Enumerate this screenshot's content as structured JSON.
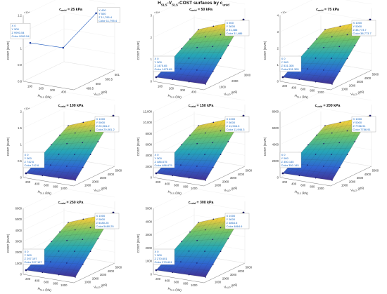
{
  "figure": {
    "title": "H_SLS - V_SLS - COST surfaces by c_unid",
    "title_parts": {
      "h": "H",
      "h_sub": "SLS",
      "sep1": "-",
      "v": "V",
      "v_sub": "SLS",
      "rest": "-COST surfaces by c",
      "c_sub": "unid"
    }
  },
  "colors": {
    "surface_low": "#3b0f70",
    "surface_mid1": "#2c7fb8",
    "surface_mid2": "#21a685",
    "surface_high": "#f9e721",
    "datatip_text": "#1565c0",
    "axis": "#555555"
  },
  "chart_data": [
    {
      "type": "line",
      "title": "c_unid = 25 kPa",
      "xlabel": "H_SLS (kN)",
      "ylabel": "V_SLS (kN)",
      "zlabel": "COST (EUR)",
      "exponent": "×10⁴",
      "x_ticks": [
        "100",
        "200",
        "300",
        "400"
      ],
      "y_ticks": [
        "499.5",
        "500",
        "500.5",
        "501"
      ],
      "z_ticks": [
        "0.8",
        "0.9",
        "1",
        "1.1",
        "1.2"
      ],
      "zlim": [
        0.8,
        1.2
      ],
      "points": [
        {
          "x": 0,
          "y": 500,
          "z": 0.9994
        },
        {
          "x": 200,
          "y": 500,
          "z": 0.97
        },
        {
          "x": 400,
          "y": 500,
          "z": 1.17954
        }
      ],
      "datatips": [
        {
          "lines": [
            "X 0",
            "Y 500",
            "Z 9993.54",
            "Color 9993.54"
          ]
        },
        {
          "lines": [
            "X 400",
            "Y 500",
            "Z 11,795.4",
            "Color 11,795.4"
          ]
        }
      ]
    },
    {
      "type": "surface",
      "title": "c_unid = 50 kPa",
      "xlabel": "H_SLS (kN)",
      "ylabel": "V_SLS (kN)",
      "zlabel": "COST (EUR)",
      "exponent": "×10⁴",
      "x_ticks": [
        "100",
        "200",
        "300",
        "400"
      ],
      "y_ticks": [
        "1000",
        "2000",
        "3000"
      ],
      "z_ticks": [
        "0",
        "1",
        "2",
        "3"
      ],
      "zlim": [
        0,
        3.5
      ],
      "datatips": [
        {
          "lines": [
            "X 0",
            "Y 500",
            "Z 1475.65",
            "Color 1475.65"
          ]
        },
        {
          "lines": [
            "X 500",
            "Y 3000",
            "Z 31,486",
            "Color 31,486"
          ]
        }
      ]
    },
    {
      "type": "surface",
      "title": "c_unid = 75 kPa",
      "xlabel": "H_SLS (kN)",
      "ylabel": "V_SLS (kN)",
      "zlabel": "COST (EUR)",
      "exponent": "×10⁴",
      "x_ticks": [
        "200",
        "400",
        "600",
        "800",
        "1000"
      ],
      "y_ticks": [
        "1000",
        "2000",
        "3000",
        "4000",
        "5000"
      ],
      "z_ticks": [
        "0",
        "1",
        "2",
        "3",
        "4"
      ],
      "zlim": [
        0,
        4
      ],
      "datatips": [
        {
          "lines": [
            "X 0",
            "Y 500",
            "Z 531.305",
            "Color 531.305"
          ]
        },
        {
          "lines": [
            "X 1000",
            "Y 5000",
            "Z 38,773.7",
            "Color 38,773.7"
          ]
        }
      ]
    },
    {
      "type": "surface",
      "title": "c_unid = 100 kPa",
      "xlabel": "H_SLS (kN)",
      "ylabel": "V_SLS (kN)",
      "zlabel": "COST (EUR)",
      "exponent": "×10⁴",
      "x_ticks": [
        "200",
        "400",
        "600",
        "800",
        "1000"
      ],
      "y_ticks": [
        "1000",
        "2000",
        "3000",
        "4000",
        "5000"
      ],
      "z_ticks": [
        "0",
        "0.5",
        "1",
        "1.5",
        "2"
      ],
      "zlim": [
        0,
        2
      ],
      "datatips": [
        {
          "lines": [
            "X 0",
            "Y 500",
            "Z 742.6",
            "Color 742.6"
          ]
        },
        {
          "lines": [
            "X 1000",
            "Y 5000",
            "Z 20,061.2",
            "Color 20,061.2"
          ]
        }
      ]
    },
    {
      "type": "surface",
      "title": "c_unid = 150 kPa",
      "xlabel": "H_SLS (kN)",
      "ylabel": "V_SLS (kN)",
      "zlabel": "COST (EUR)",
      "exponent": "",
      "x_ticks": [
        "200",
        "400",
        "600",
        "800",
        "1000"
      ],
      "y_ticks": [
        "1000",
        "2000",
        "3000",
        "4000",
        "5000"
      ],
      "z_ticks": [
        "0",
        "2000",
        "4000",
        "6000",
        "8000",
        "10,000",
        "12,000"
      ],
      "zlim": [
        0,
        12000
      ],
      "datatips": [
        {
          "lines": [
            "X 0",
            "Y 500",
            "Z 486.675",
            "Color 486.675"
          ]
        },
        {
          "lines": [
            "X 1000",
            "Y 5000",
            "Z 11,946.3",
            "Color 11,946.3"
          ]
        }
      ]
    },
    {
      "type": "surface",
      "title": "c_unid = 200 kPa",
      "xlabel": "H_SLS (kN)",
      "ylabel": "V_SLS (kN)",
      "zlabel": "COST (EUR)",
      "exponent": "",
      "x_ticks": [
        "200",
        "400",
        "600",
        "800",
        "1000"
      ],
      "y_ticks": [
        "1000",
        "2000",
        "3000",
        "4000",
        "5000"
      ],
      "z_ticks": [
        "0",
        "2000",
        "4000",
        "6000",
        "8000"
      ],
      "zlim": [
        0,
        8000
      ],
      "datatips": [
        {
          "lines": [
            "X 0",
            "Y 500",
            "Z 350.145",
            "Color 350.145"
          ]
        },
        {
          "lines": [
            "X 1000",
            "Y 5000",
            "Z 7786.91",
            "Color 7786.91"
          ]
        }
      ]
    },
    {
      "type": "surface",
      "title": "c_unid = 250 kPa",
      "xlabel": "H_SLS (kN)",
      "ylabel": "V_SLS (kN)",
      "zlabel": "COST (EUR)",
      "exponent": "",
      "x_ticks": [
        "200",
        "400",
        "600",
        "800",
        "1000"
      ],
      "y_ticks": [
        "1000",
        "2000",
        "3000",
        "4000",
        "5000"
      ],
      "z_ticks": [
        "0",
        "1000",
        "2000",
        "3000",
        "4000",
        "5000",
        "6000"
      ],
      "zlim": [
        0,
        6000
      ],
      "datatips": [
        {
          "lines": [
            "X 0",
            "Y 500",
            "Z 297.197",
            "Color 297.197"
          ]
        },
        {
          "lines": [
            "X 1000",
            "Y 5000",
            "Z 5480.25",
            "Color 5480.25"
          ]
        }
      ]
    },
    {
      "type": "surface",
      "title": "c_unid = 300 kPa",
      "xlabel": "H_SLS (kN)",
      "ylabel": "V_SLS (kN)",
      "zlabel": "COST (EUR)",
      "exponent": "",
      "x_ticks": [
        "200",
        "400",
        "600",
        "800",
        "1000"
      ],
      "y_ticks": [
        "1000",
        "2000",
        "3000",
        "4000",
        "5000"
      ],
      "z_ticks": [
        "0",
        "1000",
        "2000",
        "3000",
        "4000",
        "5000"
      ],
      "zlim": [
        0,
        5000
      ],
      "datatips": [
        {
          "lines": [
            "X 0",
            "Y 500",
            "Z 270.601",
            "Color 270.601"
          ]
        },
        {
          "lines": [
            "X 1000",
            "Y 5000",
            "Z 4864.6",
            "Color 4864.6"
          ]
        }
      ]
    }
  ]
}
